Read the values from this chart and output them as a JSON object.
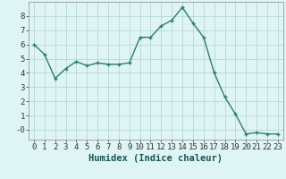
{
  "x": [
    0,
    1,
    2,
    3,
    4,
    5,
    6,
    7,
    8,
    9,
    10,
    11,
    12,
    13,
    14,
    15,
    16,
    17,
    18,
    19,
    20,
    21,
    22,
    23
  ],
  "y": [
    6.0,
    5.3,
    3.6,
    4.3,
    4.8,
    4.5,
    4.7,
    4.6,
    4.6,
    4.7,
    6.5,
    6.5,
    7.3,
    7.7,
    8.6,
    7.5,
    6.5,
    4.0,
    2.3,
    1.1,
    -0.3,
    -0.2,
    -0.3,
    -0.3
  ],
  "line_color": "#2e7d6e",
  "marker": "+",
  "marker_size": 3,
  "bg_color": "#dff4f4",
  "grid_color": "#b8d8d8",
  "xlabel": "Humidex (Indice chaleur)",
  "xlabel_fontsize": 7.5,
  "yticks": [
    0,
    1,
    2,
    3,
    4,
    5,
    6,
    7,
    8
  ],
  "ytick_labels": [
    "-0",
    "1",
    "2",
    "3",
    "4",
    "5",
    "6",
    "7",
    "8"
  ],
  "xticks": [
    0,
    1,
    2,
    3,
    4,
    5,
    6,
    7,
    8,
    9,
    10,
    11,
    12,
    13,
    14,
    15,
    16,
    17,
    18,
    19,
    20,
    21,
    22,
    23
  ],
  "ylim": [
    -0.7,
    9.0
  ],
  "xlim": [
    -0.5,
    23.5
  ],
  "tick_fontsize": 6.5,
  "linewidth": 1.0
}
